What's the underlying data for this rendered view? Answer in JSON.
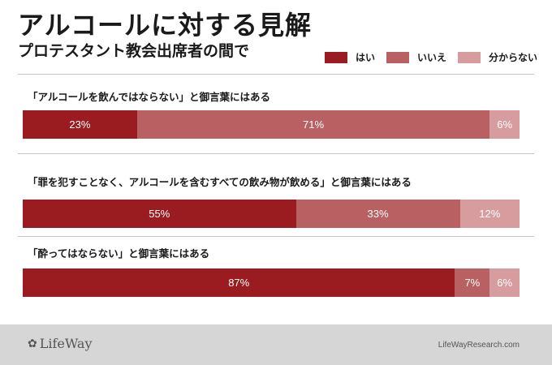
{
  "title": "アルコールに対する見解",
  "subtitle": "プロテスタント教会出席者の間で",
  "legend": [
    {
      "label": "はい",
      "color": "#9b1c20"
    },
    {
      "label": "いいえ",
      "color": "#b96063"
    },
    {
      "label": "分からない",
      "color": "#d69c9e"
    }
  ],
  "chart_data": {
    "type": "bar",
    "orientation": "horizontal",
    "stacked": true,
    "units": "%",
    "categories": [
      "「アルコールを飲んではならない」と御言葉にはある",
      "「罪を犯すことなく、アルコールを含むすべての飲み物が飲める」と御言葉にはある",
      "「酔ってはならない」と御言葉にはある"
    ],
    "series": [
      {
        "name": "はい",
        "values": [
          23,
          55,
          87
        ]
      },
      {
        "name": "いいえ",
        "values": [
          71,
          33,
          7
        ]
      },
      {
        "name": "分からない",
        "values": [
          6,
          12,
          6
        ]
      }
    ]
  },
  "footer": {
    "logo": "LifeWay",
    "website": "LifeWayResearch.com"
  }
}
